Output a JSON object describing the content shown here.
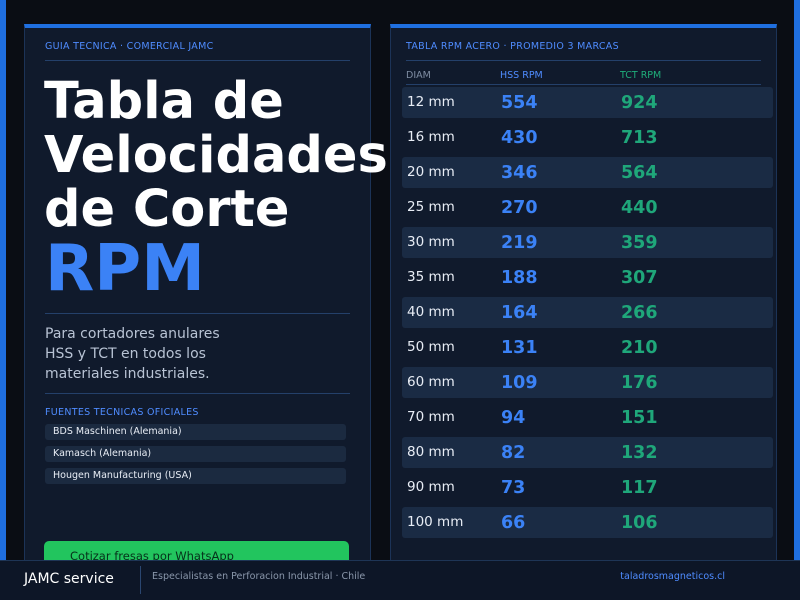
{
  "left_panel": {
    "eyebrow": "GUIA TECNICA · COMERCIAL JAMC",
    "title_lines": [
      "Tabla de",
      "Velocidades",
      "de Corte"
    ],
    "title_accent": "RPM",
    "description_lines": [
      "Para cortadores anulares",
      "HSS y TCT en todos los",
      "materiales industriales."
    ],
    "sources_title": "FUENTES TECNICAS OFICIALES",
    "sources": [
      "BDS Maschinen (Alemania)",
      "Kamasch (Alemania)",
      "Hougen Manufacturing (USA)"
    ],
    "cta_label": "Cotizar fresas por WhatsApp"
  },
  "right_panel": {
    "eyebrow": "TABLA RPM ACERO · PROMEDIO 3 MARCAS",
    "headers": {
      "diam": "DIAM",
      "hss": "HSS RPM",
      "tct": "TCT RPM"
    },
    "rows": [
      {
        "diam": "12 mm",
        "hss": "554",
        "tct": "924"
      },
      {
        "diam": "16 mm",
        "hss": "430",
        "tct": "713"
      },
      {
        "diam": "20 mm",
        "hss": "346",
        "tct": "564"
      },
      {
        "diam": "25 mm",
        "hss": "270",
        "tct": "440"
      },
      {
        "diam": "30 mm",
        "hss": "219",
        "tct": "359"
      },
      {
        "diam": "35 mm",
        "hss": "188",
        "tct": "307"
      },
      {
        "diam": "40 mm",
        "hss": "164",
        "tct": "266"
      },
      {
        "diam": "50 mm",
        "hss": "131",
        "tct": "210"
      },
      {
        "diam": "60 mm",
        "hss": "109",
        "tct": "176"
      },
      {
        "diam": "70 mm",
        "hss": "94",
        "tct": "151"
      },
      {
        "diam": "80 mm",
        "hss": "82",
        "tct": "132"
      },
      {
        "diam": "90 mm",
        "hss": "73",
        "tct": "117"
      },
      {
        "diam": "100 mm",
        "hss": "66",
        "tct": "106"
      }
    ]
  },
  "footer": {
    "brand": "JAMC service",
    "tagline": "Especialistas en Perforacion Industrial · Chile",
    "website": "taladrosmagneticos.cl"
  },
  "colors": {
    "accent_blue": "#3b82f6",
    "accent_green": "#1fa77a",
    "cta_green": "#22c55e",
    "background": "#0a0d14",
    "panel": "#101a2c"
  }
}
